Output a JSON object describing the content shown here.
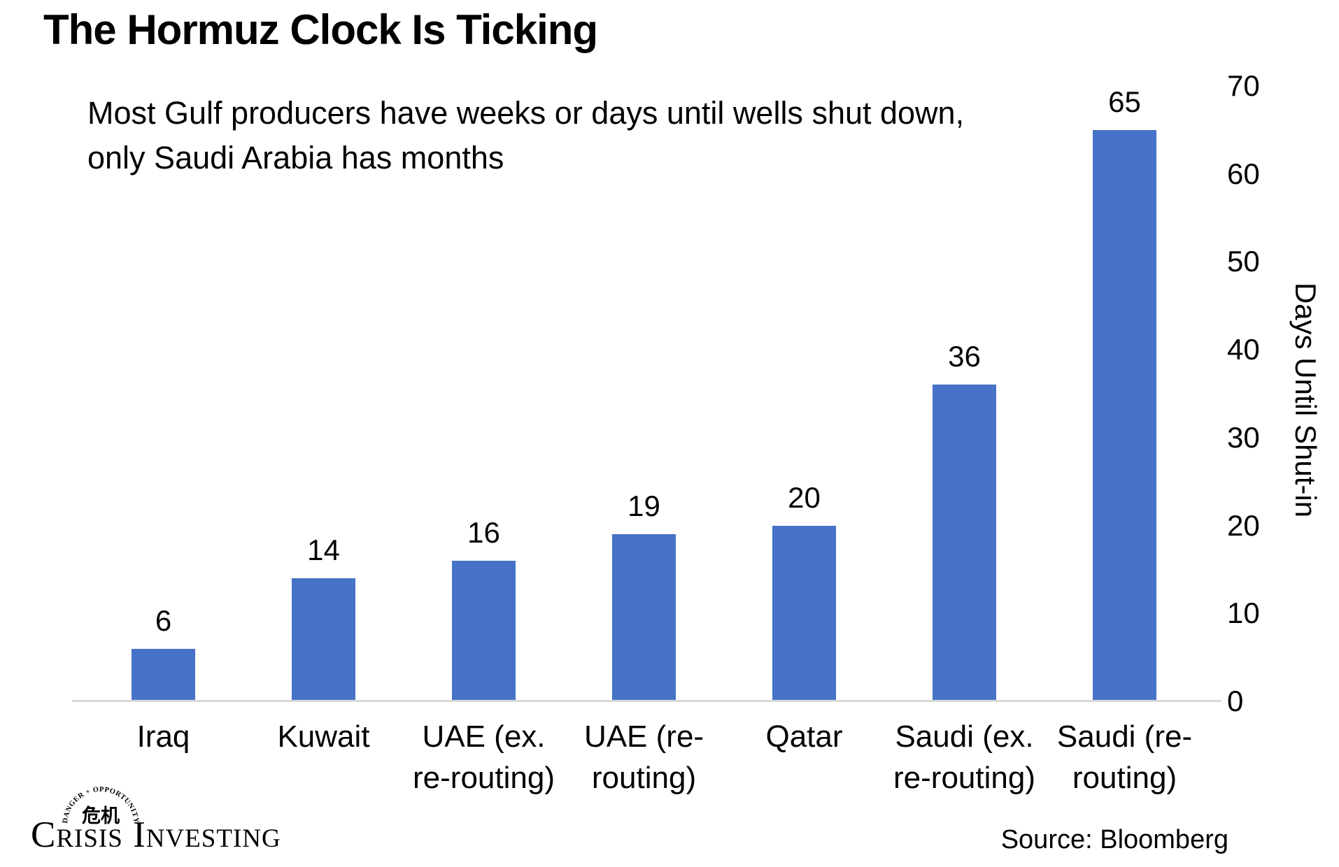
{
  "title": "The Hormuz Clock Is Ticking",
  "subtitle": "Most Gulf producers have weeks or days until wells shut down,\nonly Saudi Arabia has months",
  "chart_data": {
    "type": "bar",
    "categories": [
      "Iraq",
      "Kuwait",
      "UAE (ex.\nre-routing)",
      "UAE (re-\nrouting)",
      "Qatar",
      "Saudi (ex.\nre-routing)",
      "Saudi (re-\nrouting)"
    ],
    "values": [
      6,
      14,
      16,
      19,
      20,
      36,
      65
    ],
    "value_labels": [
      "6",
      "14",
      "16",
      "19",
      "20",
      "36",
      "65"
    ],
    "title": "The Hormuz Clock Is Ticking",
    "xlabel": "",
    "ylabel": "Days Until Shut-in",
    "ylim": [
      0,
      70
    ],
    "yticks": [
      0,
      10,
      20,
      30,
      40,
      50,
      60,
      70
    ],
    "grid": false,
    "legend": false,
    "bar_color": "#4673C8"
  },
  "footer": {
    "source": "Source: Bloomberg",
    "logo": {
      "arc_text": "DANGER + OPPORTUNITY",
      "chinese_characters": "危机",
      "wordmark": "Crisis Investing"
    }
  },
  "colors": {
    "bar": "#4673C8",
    "axis_line": "#D9D9D9",
    "text": "#000000"
  }
}
